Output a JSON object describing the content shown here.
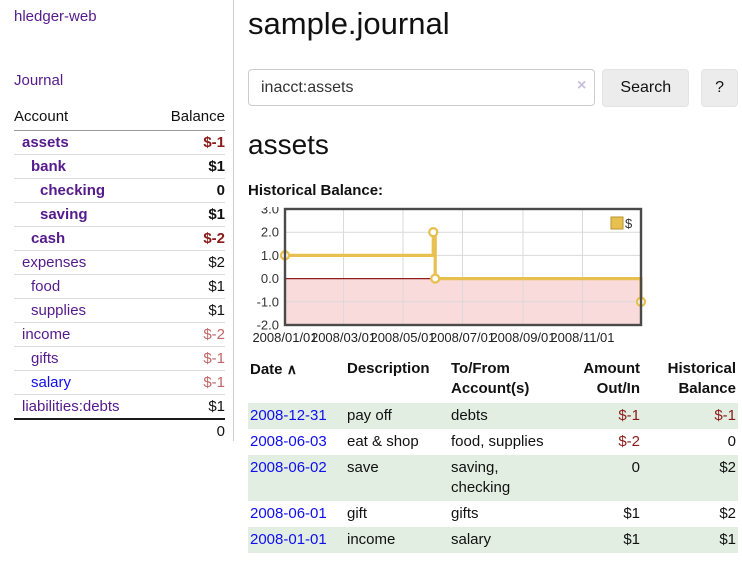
{
  "sidebar": {
    "brand": "hledger-web",
    "journal_link": "Journal",
    "accounts_table": {
      "headers": {
        "account": "Account",
        "balance": "Balance"
      },
      "rows": [
        {
          "name": "assets",
          "balance": "$-1"
        },
        {
          "name": "bank",
          "balance": "$1"
        },
        {
          "name": "checking",
          "balance": "0"
        },
        {
          "name": "saving",
          "balance": "$1"
        },
        {
          "name": "cash",
          "balance": "$-2"
        },
        {
          "name": "expenses",
          "balance": "$2"
        },
        {
          "name": "food",
          "balance": "$1"
        },
        {
          "name": "supplies",
          "balance": "$1"
        },
        {
          "name": "income",
          "balance": "$-2"
        },
        {
          "name": "gifts",
          "balance": "$-1"
        },
        {
          "name": "salary",
          "balance": "$-1"
        },
        {
          "name": "liabilities:debts",
          "balance": "$1"
        }
      ],
      "total": "0"
    }
  },
  "header": {
    "title": "sample.journal"
  },
  "search": {
    "value": "inacct:assets",
    "button_label": "Search",
    "help_label": "?"
  },
  "icons": {
    "clear": "×",
    "sort_asc": "∧"
  },
  "account_page": {
    "heading": "assets",
    "chart_label": "Historical Balance:"
  },
  "chart_data": {
    "type": "line",
    "step": true,
    "title": "Historical Balance",
    "xlabel": "",
    "ylabel": "",
    "series": [
      {
        "name": "$",
        "points": [
          [
            "2008-01-01",
            1
          ],
          [
            "2008-06-01",
            2
          ],
          [
            "2008-06-03",
            0
          ],
          [
            "2008-12-31",
            -1
          ]
        ]
      }
    ],
    "x_range": [
      "2008-01-01",
      "2008-12-31"
    ],
    "x_ticks": [
      "2008/01/01",
      "2008/03/01",
      "2008/05/01",
      "2008/07/01",
      "2008/09/01",
      "2008/11/01"
    ],
    "y_ticks": [
      "3.0",
      "2.0",
      "1.0",
      "0.0",
      "-1.0",
      "-2.0"
    ],
    "ylim": [
      -2,
      3
    ],
    "grid": true,
    "legend": {
      "label": "$",
      "position": "top-right"
    },
    "negative_region_shaded": true,
    "colors": {
      "line": "#e7c050",
      "negative_fill": "#fadbdc",
      "zero_line": "#8f1d1d"
    }
  },
  "transactions": {
    "headers": {
      "date": "Date",
      "description": "Description",
      "accounts": "To/From Account(s)",
      "amount": "Amount Out/In",
      "balance": "Historical Balance"
    },
    "rows": [
      {
        "date": "2008-12-31",
        "description": "pay off",
        "accounts": "debts",
        "amount": "$-1",
        "balance": "$-1"
      },
      {
        "date": "2008-06-03",
        "description": "eat & shop",
        "accounts": "food, supplies",
        "amount": "$-2",
        "balance": "0"
      },
      {
        "date": "2008-06-02",
        "description": "save",
        "accounts": "saving, checking",
        "amount": "0",
        "balance": "$2"
      },
      {
        "date": "2008-06-01",
        "description": "gift",
        "accounts": "gifts",
        "amount": "$1",
        "balance": "$2"
      },
      {
        "date": "2008-01-01",
        "description": "income",
        "accounts": "salary",
        "amount": "$1",
        "balance": "$1"
      }
    ]
  }
}
